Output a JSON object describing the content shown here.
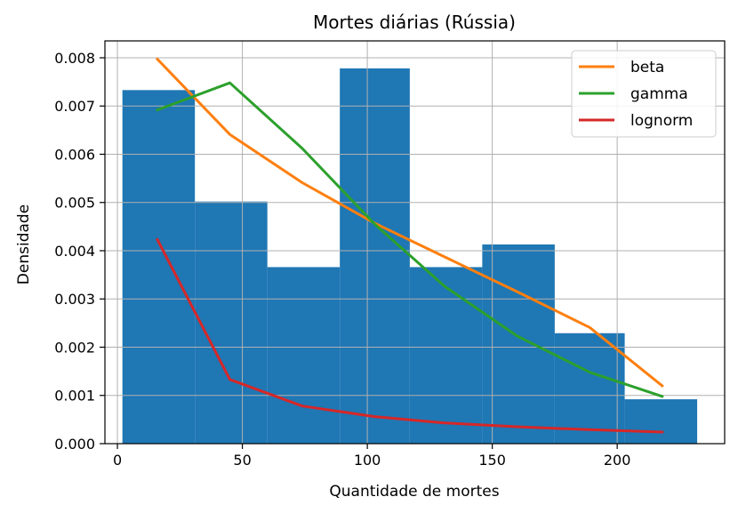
{
  "chart_data": {
    "type": "histogram",
    "title": "Mortes diárias (Rússia)",
    "xlabel": "Quantidade de mortes",
    "ylabel": "Densidade",
    "xlim": [
      -5,
      243
    ],
    "ylim": [
      0,
      0.00835
    ],
    "x_ticks": [
      0,
      50,
      100,
      150,
      200
    ],
    "x_tick_labels": [
      "0",
      "50",
      "100",
      "150",
      "200"
    ],
    "y_ticks": [
      0,
      0.001,
      0.002,
      0.003,
      0.004,
      0.005,
      0.006,
      0.007,
      0.008
    ],
    "y_tick_labels": [
      "0.000",
      "0.001",
      "0.002",
      "0.003",
      "0.004",
      "0.005",
      "0.006",
      "0.007",
      "0.008"
    ],
    "grid": true,
    "legend_position": "top-right",
    "bar_color": "#1f77b4",
    "histogram": {
      "bin_edges": [
        2,
        31,
        60,
        89,
        117,
        146,
        175,
        203,
        232
      ],
      "density": [
        0.00733,
        0.00502,
        0.00366,
        0.00778,
        0.00366,
        0.00413,
        0.00229,
        0.00092
      ]
    },
    "series": [
      {
        "name": "beta",
        "color": "#ff7f0e",
        "x": [
          16,
          45,
          74,
          103,
          131,
          160,
          189,
          218
        ],
        "values": [
          0.00797,
          0.00641,
          0.00541,
          0.00457,
          0.00387,
          0.00315,
          0.00241,
          0.0012
        ]
      },
      {
        "name": "gamma",
        "color": "#2ca02c",
        "x": [
          16,
          45,
          74,
          103,
          131,
          160,
          189,
          218
        ],
        "values": [
          0.00692,
          0.00748,
          0.00612,
          0.00455,
          0.00326,
          0.00223,
          0.00148,
          0.00098
        ]
      },
      {
        "name": "lognorm",
        "color": "#d62728",
        "x": [
          16,
          45,
          74,
          103,
          131,
          160,
          189,
          218
        ],
        "values": [
          0.00423,
          0.00133,
          0.00078,
          0.00056,
          0.00043,
          0.00035,
          0.00029,
          0.00024
        ]
      }
    ]
  }
}
